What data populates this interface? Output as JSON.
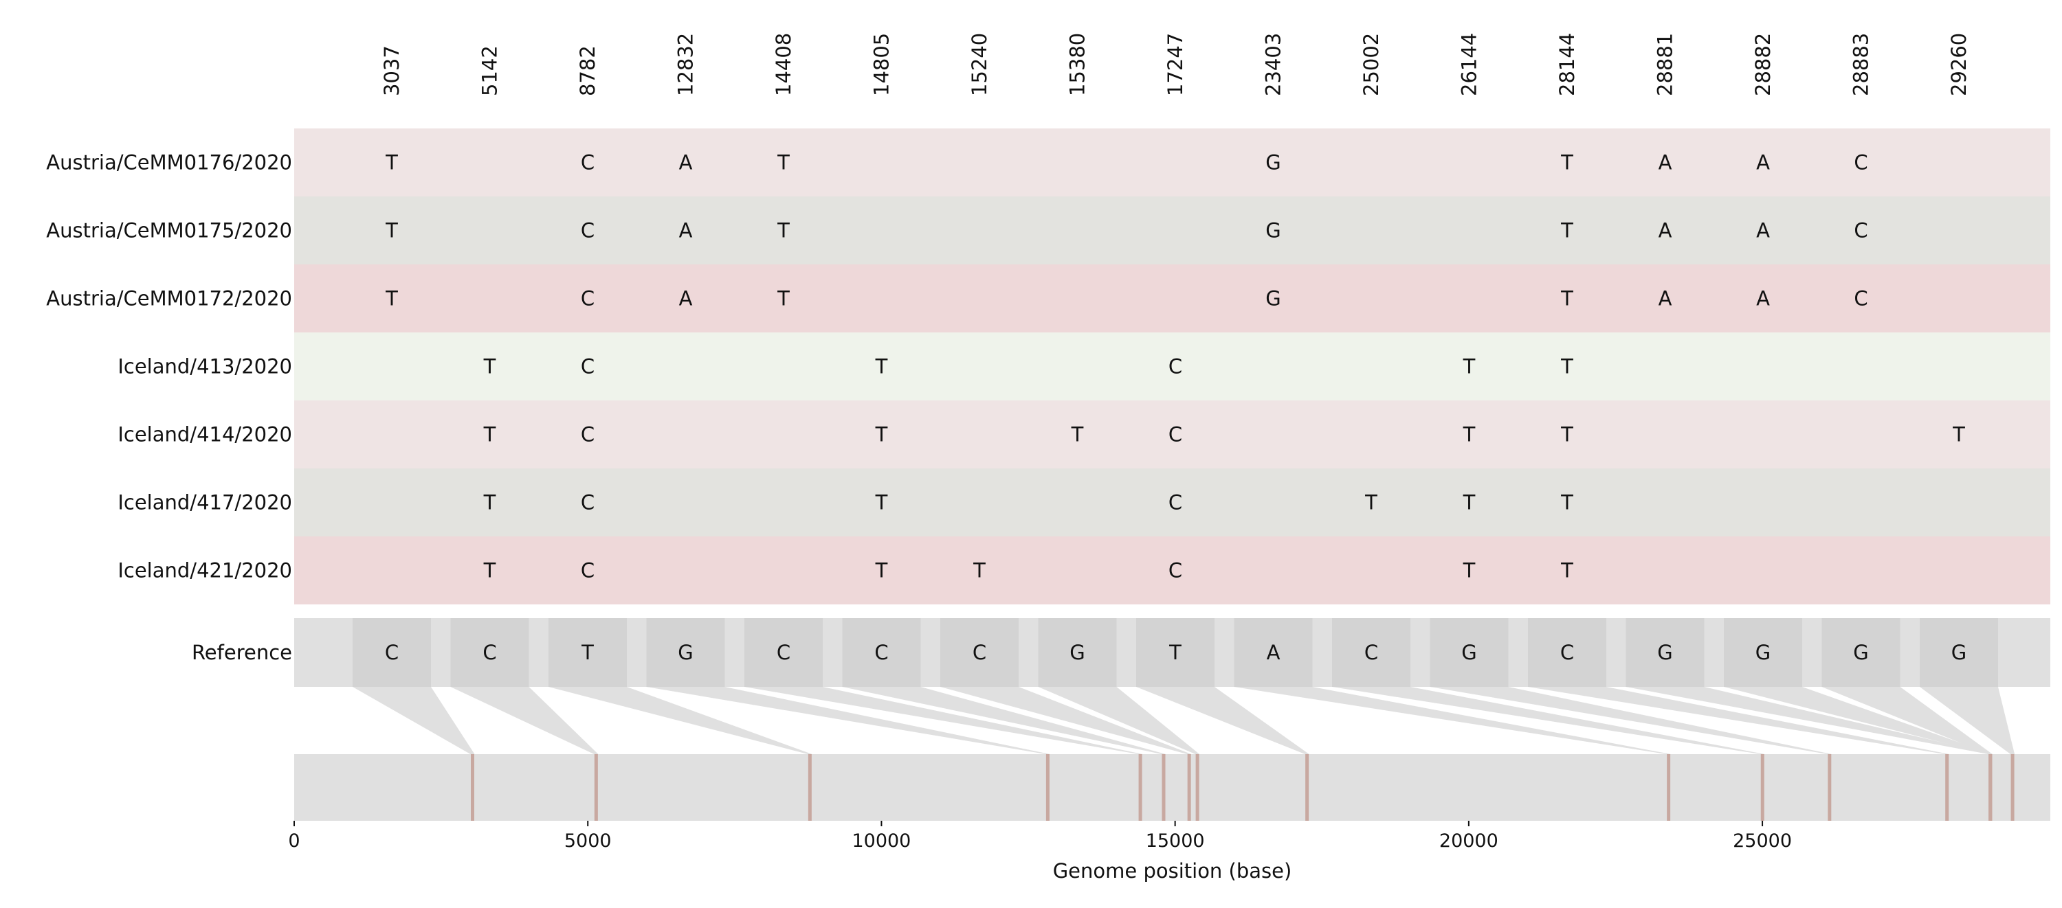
{
  "positions": [
    3037,
    5142,
    8782,
    12832,
    14408,
    14805,
    15240,
    15380,
    17247,
    23403,
    25002,
    26144,
    28144,
    28881,
    28882,
    28883,
    29260
  ],
  "samples": [
    {
      "name": "Austria/CeMM0176/2020",
      "color": "#efe4e4",
      "bases": [
        "T",
        "",
        "C",
        "A",
        "T",
        "",
        "",
        "",
        "",
        "G",
        "",
        "",
        "T",
        "A",
        "A",
        "C",
        ""
      ]
    },
    {
      "name": "Austria/CeMM0175/2020",
      "color": "#e3e3df",
      "bases": [
        "T",
        "",
        "C",
        "A",
        "T",
        "",
        "",
        "",
        "",
        "G",
        "",
        "",
        "T",
        "A",
        "A",
        "C",
        ""
      ]
    },
    {
      "name": "Austria/CeMM0172/2020",
      "color": "#eed8d9",
      "bases": [
        "T",
        "",
        "C",
        "A",
        "T",
        "",
        "",
        "",
        "",
        "G",
        "",
        "",
        "T",
        "A",
        "A",
        "C",
        ""
      ]
    },
    {
      "name": "Iceland/413/2020",
      "color": "#eff3eb",
      "bases": [
        "",
        "T",
        "C",
        "",
        "",
        "T",
        "",
        "",
        "C",
        "",
        "",
        "T",
        "T",
        "",
        "",
        "",
        ""
      ]
    },
    {
      "name": "Iceland/414/2020",
      "color": "#efe4e4",
      "bases": [
        "",
        "T",
        "C",
        "",
        "",
        "T",
        "",
        "T",
        "C",
        "",
        "",
        "T",
        "T",
        "",
        "",
        "",
        "T"
      ]
    },
    {
      "name": "Iceland/417/2020",
      "color": "#e3e3df",
      "bases": [
        "",
        "T",
        "C",
        "",
        "",
        "T",
        "",
        "",
        "C",
        "",
        "T",
        "T",
        "T",
        "",
        "",
        "",
        ""
      ]
    },
    {
      "name": "Iceland/421/2020",
      "color": "#eed8d9",
      "bases": [
        "",
        "T",
        "C",
        "",
        "",
        "T",
        "T",
        "",
        "C",
        "",
        "",
        "T",
        "T",
        "",
        "",
        "",
        ""
      ]
    }
  ],
  "reference": {
    "label": "Reference",
    "bases": [
      "C",
      "C",
      "T",
      "G",
      "C",
      "C",
      "C",
      "G",
      "T",
      "A",
      "C",
      "G",
      "C",
      "G",
      "G",
      "G",
      "G"
    ]
  },
  "genome_axis": {
    "title": "Genome position (base)",
    "min": 0,
    "max": 29903,
    "ticks": [
      0,
      5000,
      10000,
      15000,
      20000,
      25000
    ]
  },
  "colors": {
    "marker": "#c8a8a0",
    "track": "#e0e0e0",
    "ref_box": "#d3d3d3",
    "connector": "#e0e0e0"
  }
}
